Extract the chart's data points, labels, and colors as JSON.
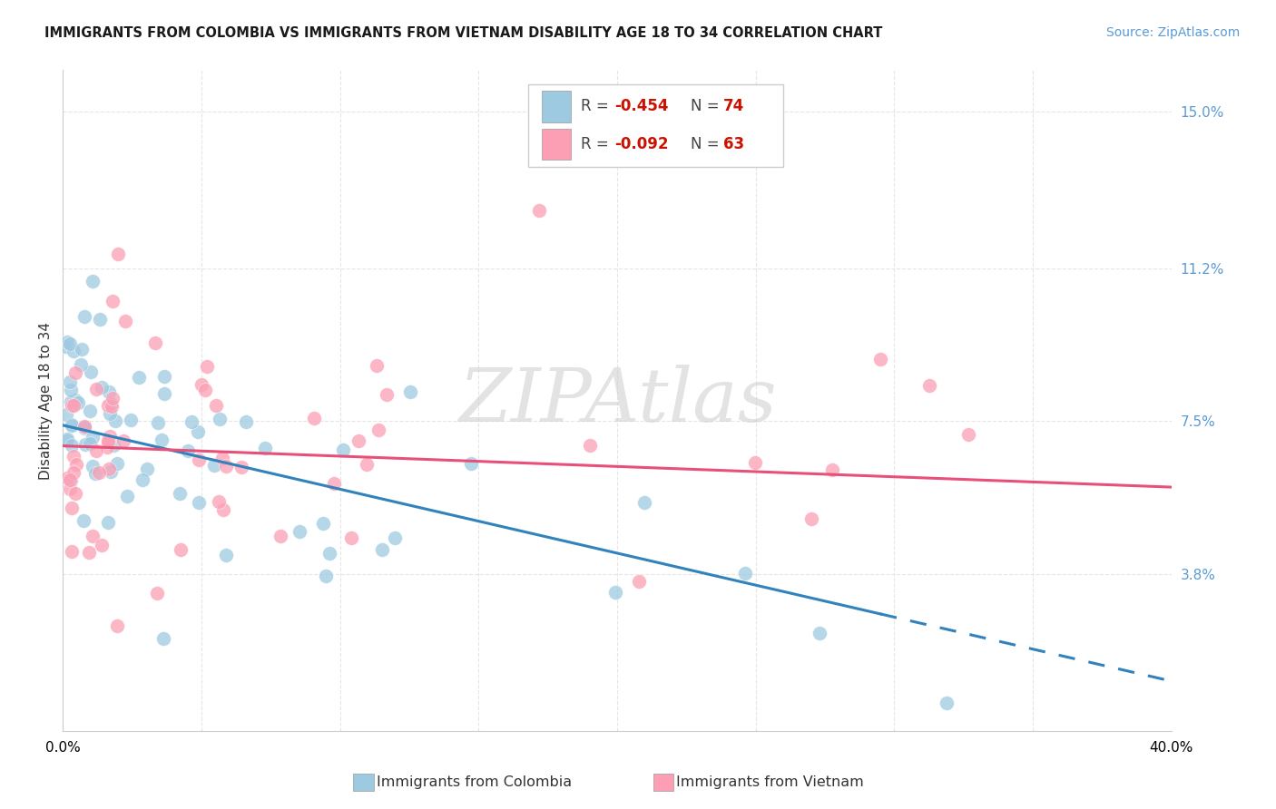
{
  "title": "IMMIGRANTS FROM COLOMBIA VS IMMIGRANTS FROM VIETNAM DISABILITY AGE 18 TO 34 CORRELATION CHART",
  "source": "Source: ZipAtlas.com",
  "ylabel": "Disability Age 18 to 34",
  "xlim": [
    0.0,
    0.4
  ],
  "ylim": [
    0.0,
    0.16
  ],
  "yticks_right": [
    0.038,
    0.075,
    0.112,
    0.15
  ],
  "yticks_right_labels": [
    "3.8%",
    "7.5%",
    "11.2%",
    "15.0%"
  ],
  "legend_R1": "-0.454",
  "legend_N1": "74",
  "legend_R2": "-0.092",
  "legend_N2": "63",
  "color_colombia": "#9ecae1",
  "color_vietnam": "#fc9fb5",
  "color_line_colombia": "#3182bd",
  "color_line_vietnam": "#e8507a",
  "background_color": "#ffffff",
  "grid_color": "#e5e5e5",
  "title_fontsize": 10.5,
  "axis_fontsize": 11,
  "right_tick_color": "#5b9bd5"
}
